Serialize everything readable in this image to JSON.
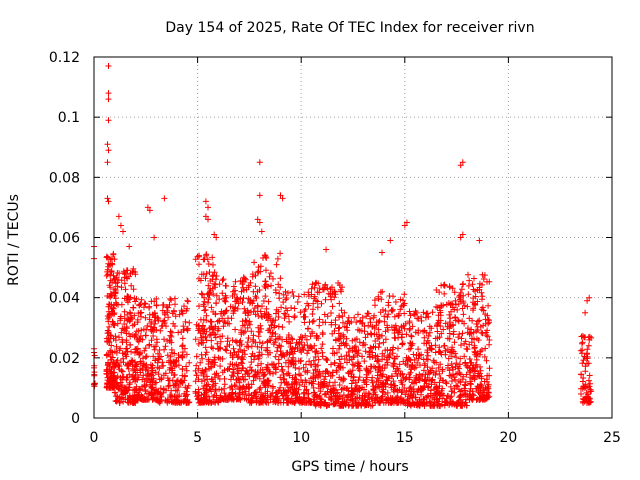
{
  "chart_data": {
    "type": "scatter",
    "title": "Day 154 of 2025, Rate Of TEC Index for receiver rivn",
    "xlabel": "GPS time / hours",
    "ylabel": "ROTI / TECUs",
    "xlim": [
      0,
      25
    ],
    "ylim": [
      0,
      0.12
    ],
    "xticks": [
      0,
      5,
      10,
      15,
      20,
      25
    ],
    "xtick_labels": [
      "0",
      "5",
      "10",
      "15",
      "20",
      "25"
    ],
    "yticks": [
      0,
      0.02,
      0.04,
      0.06,
      0.08,
      0.1,
      0.12
    ],
    "ytick_labels": [
      "0",
      "0.02",
      "0.04",
      "0.06",
      "0.08",
      "0.1",
      "0.12"
    ],
    "grid": true,
    "marker": "+",
    "color": "#ff0000",
    "outliers": [
      [
        0.0,
        0.057
      ],
      [
        0.0,
        0.053
      ],
      [
        0.0,
        0.023
      ],
      [
        0.7,
        0.117
      ],
      [
        0.7,
        0.108
      ],
      [
        0.7,
        0.106
      ],
      [
        0.7,
        0.099
      ],
      [
        0.65,
        0.091
      ],
      [
        0.7,
        0.089
      ],
      [
        0.65,
        0.085
      ],
      [
        0.65,
        0.073
      ],
      [
        0.7,
        0.072
      ],
      [
        1.2,
        0.067
      ],
      [
        1.3,
        0.064
      ],
      [
        1.4,
        0.062
      ],
      [
        1.7,
        0.057
      ],
      [
        2.6,
        0.07
      ],
      [
        2.7,
        0.069
      ],
      [
        2.9,
        0.06
      ],
      [
        3.4,
        0.073
      ],
      [
        5.4,
        0.072
      ],
      [
        5.5,
        0.07
      ],
      [
        5.4,
        0.067
      ],
      [
        5.5,
        0.066
      ],
      [
        5.8,
        0.061
      ],
      [
        5.9,
        0.06
      ],
      [
        8.0,
        0.085
      ],
      [
        8.0,
        0.074
      ],
      [
        7.9,
        0.066
      ],
      [
        8.0,
        0.065
      ],
      [
        8.1,
        0.062
      ],
      [
        9.0,
        0.074
      ],
      [
        9.1,
        0.073
      ],
      [
        11.2,
        0.056
      ],
      [
        13.9,
        0.055
      ],
      [
        14.3,
        0.059
      ],
      [
        15.1,
        0.065
      ],
      [
        15.0,
        0.064
      ],
      [
        17.8,
        0.085
      ],
      [
        17.7,
        0.084
      ],
      [
        17.8,
        0.061
      ],
      [
        17.7,
        0.06
      ],
      [
        18.6,
        0.059
      ],
      [
        23.9,
        0.04
      ],
      [
        23.8,
        0.039
      ],
      [
        23.7,
        0.035
      ]
    ],
    "clusters": [
      {
        "x_start": 0.0,
        "x_end": 0.05,
        "y_min": 0.01,
        "y_max": 0.022,
        "count": 12
      },
      {
        "x_start": 0.6,
        "x_end": 1.0,
        "y_min": 0.01,
        "y_max": 0.055,
        "count": 160
      },
      {
        "x_start": 1.0,
        "x_end": 2.0,
        "y_min": 0.005,
        "y_max": 0.05,
        "count": 240
      },
      {
        "x_start": 2.0,
        "x_end": 3.0,
        "y_min": 0.006,
        "y_max": 0.04,
        "count": 200
      },
      {
        "x_start": 3.0,
        "x_end": 4.6,
        "y_min": 0.005,
        "y_max": 0.04,
        "count": 230
      },
      {
        "x_start": 4.9,
        "x_end": 6.0,
        "y_min": 0.005,
        "y_max": 0.055,
        "count": 230
      },
      {
        "x_start": 6.0,
        "x_end": 7.5,
        "y_min": 0.006,
        "y_max": 0.048,
        "count": 260
      },
      {
        "x_start": 7.5,
        "x_end": 9.0,
        "y_min": 0.005,
        "y_max": 0.055,
        "count": 270
      },
      {
        "x_start": 9.0,
        "x_end": 10.5,
        "y_min": 0.005,
        "y_max": 0.042,
        "count": 240
      },
      {
        "x_start": 10.5,
        "x_end": 12.0,
        "y_min": 0.004,
        "y_max": 0.045,
        "count": 250
      },
      {
        "x_start": 12.0,
        "x_end": 13.5,
        "y_min": 0.004,
        "y_max": 0.035,
        "count": 230
      },
      {
        "x_start": 13.5,
        "x_end": 15.0,
        "y_min": 0.005,
        "y_max": 0.042,
        "count": 250
      },
      {
        "x_start": 15.0,
        "x_end": 16.5,
        "y_min": 0.004,
        "y_max": 0.036,
        "count": 230
      },
      {
        "x_start": 16.5,
        "x_end": 18.0,
        "y_min": 0.004,
        "y_max": 0.045,
        "count": 250
      },
      {
        "x_start": 18.0,
        "x_end": 19.1,
        "y_min": 0.006,
        "y_max": 0.048,
        "count": 200
      },
      {
        "x_start": 23.5,
        "x_end": 24.0,
        "y_min": 0.005,
        "y_max": 0.028,
        "count": 70
      }
    ]
  }
}
